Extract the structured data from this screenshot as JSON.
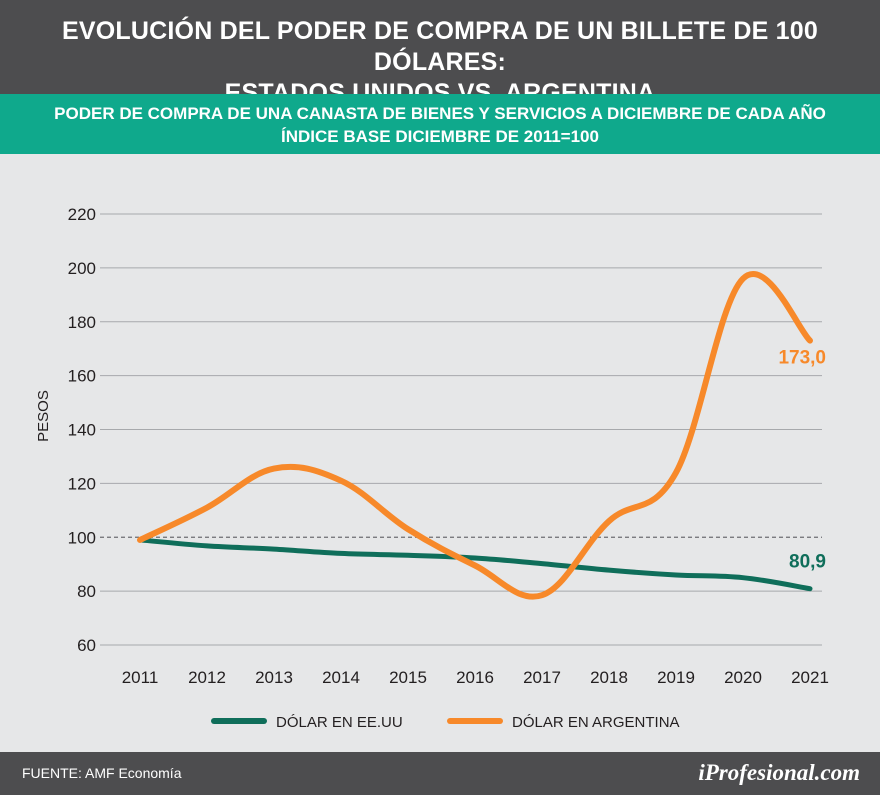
{
  "header": {
    "title_line1": "EVOLUCIÓN DEL PODER DE COMPRA DE UN BILLETE DE 100 DÓLARES:",
    "title_line2": "ESTADOS UNIDOS VS. ARGENTINA"
  },
  "subheader": {
    "line1": "PODER DE COMPRA DE UNA CANASTA DE BIENES Y SERVICIOS A DICIEMBRE DE CADA AÑO",
    "line2": "ÍNDICE BASE DICIEMBRE DE 2011=100"
  },
  "chart_data": {
    "type": "line",
    "title": "PODER DE COMPRA DE UNA CANASTA DE BIENES Y SERVICIOS A DICIEMBRE DE CADA AÑO",
    "xlabel": "",
    "ylabel": "PESOS",
    "x": [
      "2011",
      "2012",
      "2013",
      "2014",
      "2015",
      "2016",
      "2017",
      "2018",
      "2019",
      "2020",
      "2021"
    ],
    "ylim": [
      60,
      220
    ],
    "yticks": [
      60,
      80,
      100,
      120,
      140,
      160,
      180,
      200,
      220
    ],
    "grid": true,
    "reference_line": 100,
    "series": [
      {
        "name": "DÓLAR EN EE.UU",
        "color": "#0f6e5a",
        "values": [
          99,
          96.8,
          95.6,
          94,
          93.3,
          92.3,
          90.2,
          87.8,
          86,
          85,
          80.9
        ],
        "end_label": "80,9"
      },
      {
        "name": "DÓLAR EN ARGENTINA",
        "color": "#f7892a",
        "values": [
          99,
          111,
          125.5,
          121,
          103,
          89.5,
          78.5,
          106,
          124,
          196,
          173.0
        ],
        "end_label": "173,0"
      }
    ],
    "legend_position": "bottom-center"
  },
  "footer": {
    "source": "FUENTE: AMF Economía",
    "brand": "iProfesional.com"
  }
}
